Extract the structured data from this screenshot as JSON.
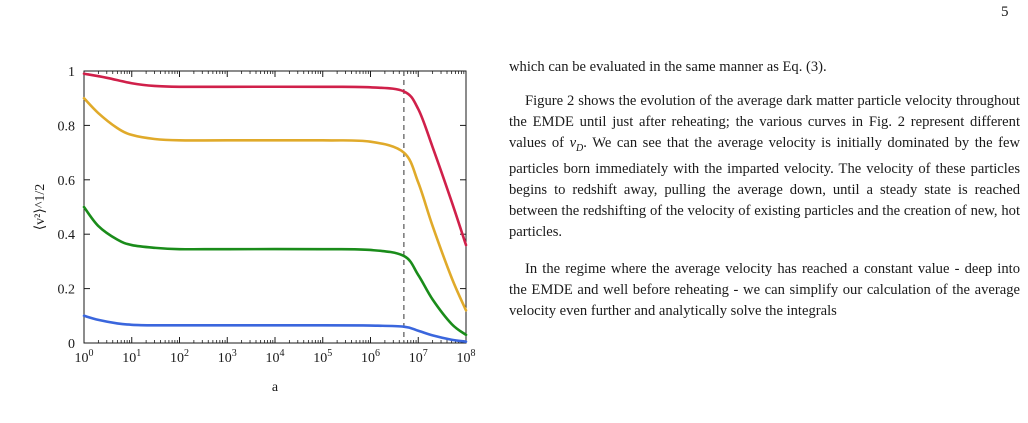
{
  "page_number": "5",
  "chart_data": {
    "type": "line",
    "title": "",
    "xlabel": "a",
    "ylabel": "⟨v²⟩^1/2",
    "x_scale": "log",
    "xlim": [
      1,
      100000000
    ],
    "ylim": [
      0,
      1
    ],
    "x_ticks": [
      {
        "value": 1,
        "base": "10",
        "exp": "0"
      },
      {
        "value": 10,
        "base": "10",
        "exp": "1"
      },
      {
        "value": 100,
        "base": "10",
        "exp": "2"
      },
      {
        "value": 1000,
        "base": "10",
        "exp": "3"
      },
      {
        "value": 10000,
        "base": "10",
        "exp": "4"
      },
      {
        "value": 100000,
        "base": "10",
        "exp": "5"
      },
      {
        "value": 1000000,
        "base": "10",
        "exp": "6"
      },
      {
        "value": 10000000,
        "base": "10",
        "exp": "7"
      },
      {
        "value": 100000000,
        "base": "10",
        "exp": "8"
      }
    ],
    "y_ticks": [
      {
        "value": 0,
        "label": "0"
      },
      {
        "value": 0.2,
        "label": "0.2"
      },
      {
        "value": 0.4,
        "label": "0.4"
      },
      {
        "value": 0.6,
        "label": "0.6"
      },
      {
        "value": 0.8,
        "label": "0.8"
      },
      {
        "value": 1,
        "label": "1"
      }
    ],
    "grid": false,
    "legend": "none",
    "vertical_reference_line": {
      "x": 5000000,
      "style": "dashed",
      "color": "#555555"
    },
    "series": [
      {
        "color": "#d0204a",
        "x": [
          1,
          3,
          10,
          30,
          100,
          1000,
          100000,
          1000000,
          5000000,
          10000000,
          20000000,
          50000000,
          100000000
        ],
        "y": [
          0.99,
          0.975,
          0.955,
          0.945,
          0.942,
          0.942,
          0.942,
          0.94,
          0.925,
          0.86,
          0.72,
          0.52,
          0.36
        ]
      },
      {
        "color": "#e0aa2a",
        "x": [
          1,
          2,
          5,
          10,
          30,
          100,
          1000,
          100000,
          1000000,
          5000000,
          10000000,
          20000000,
          50000000,
          100000000
        ],
        "y": [
          0.9,
          0.845,
          0.79,
          0.765,
          0.75,
          0.745,
          0.745,
          0.745,
          0.74,
          0.7,
          0.59,
          0.43,
          0.24,
          0.12
        ]
      },
      {
        "color": "#1a8c1a",
        "x": [
          1,
          2,
          5,
          10,
          30,
          100,
          1000,
          100000,
          1000000,
          5000000,
          10000000,
          20000000,
          50000000,
          100000000
        ],
        "y": [
          0.5,
          0.43,
          0.38,
          0.36,
          0.35,
          0.345,
          0.345,
          0.345,
          0.342,
          0.32,
          0.25,
          0.16,
          0.07,
          0.03
        ]
      },
      {
        "color": "#3a66dd",
        "x": [
          1,
          2,
          5,
          10,
          30,
          100,
          1000,
          100000,
          1000000,
          5000000,
          10000000,
          20000000,
          50000000,
          100000000
        ],
        "y": [
          0.1,
          0.085,
          0.072,
          0.067,
          0.065,
          0.065,
          0.065,
          0.065,
          0.064,
          0.06,
          0.045,
          0.028,
          0.012,
          0.005
        ]
      }
    ]
  },
  "text": {
    "lead": "which can be evaluated in the same manner as Eq. (3).",
    "p1_a": "Figure 2 shows the evolution of the average dark matter particle velocity throughout the EMDE until just after reheating; the various curves in Fig. 2 represent different values of ",
    "p1_math_base": "v",
    "p1_math_sub": "D",
    "p1_b": ". We can see that the average velocity is initially dominated by the few particles born immediately with the imparted velocity. The velocity of these particles begins to redshift away, pulling the average down, until a steady state is reached between the redshifting of the velocity of existing particles and the creation of new, hot particles.",
    "p2": "In the regime where the average velocity has reached a constant value - deep into the EMDE and well before reheating - we can simplify our calculation of the average velocity even further and analytically solve the integrals"
  }
}
